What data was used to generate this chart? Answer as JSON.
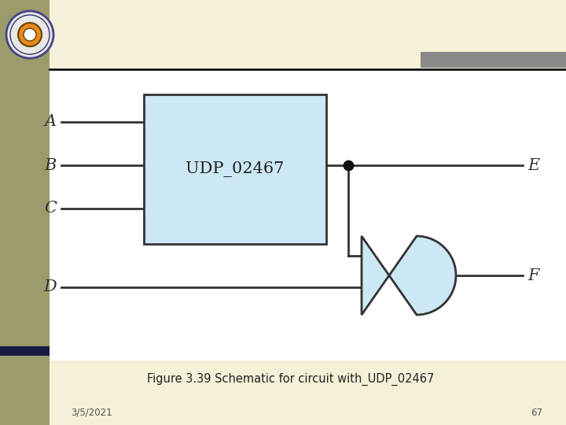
{
  "bg_color": "#f5f0d8",
  "white_box_bg": "#ffffff",
  "udp_box_color": "#cce8f4",
  "udp_box_edge": "#333333",
  "and_gate_color": "#cce8f4",
  "and_gate_edge": "#333333",
  "line_color": "#333333",
  "caption": "Figure 3.39 Schematic for circuit with_UDP_02467",
  "caption_fontsize": 10.5,
  "date_text": "3/5/2021",
  "page_num": "67",
  "udp_label": "UDP_02467",
  "left_bar_color": "#9b9b6b",
  "top_gray_color": "#8a8a8a",
  "bot_dark_color": "#1a1a44"
}
